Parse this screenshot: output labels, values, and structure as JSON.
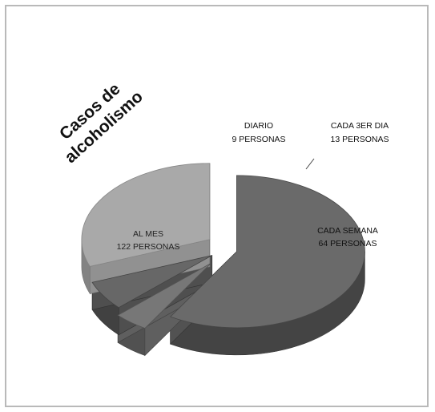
{
  "chart_data": {
    "type": "pie",
    "title_lines": [
      "Casos de",
      "alcoholismo"
    ],
    "slices": [
      {
        "label_lines": [
          "AL MES",
          "122 PERSONAS"
        ],
        "value": 122,
        "color": "#6a6a6a"
      },
      {
        "label_lines": [
          "DIARIO",
          "9 PERSONAS"
        ],
        "value": 9,
        "color": "#777777"
      },
      {
        "label_lines": [
          "CADA 3ER DIA",
          "13 PERSONAS"
        ],
        "value": 13,
        "color": "#676767"
      },
      {
        "label_lines": [
          "CADA SEMANA",
          "64 PERSONAS"
        ],
        "value": 64,
        "color": "#a9a9a9"
      }
    ]
  }
}
